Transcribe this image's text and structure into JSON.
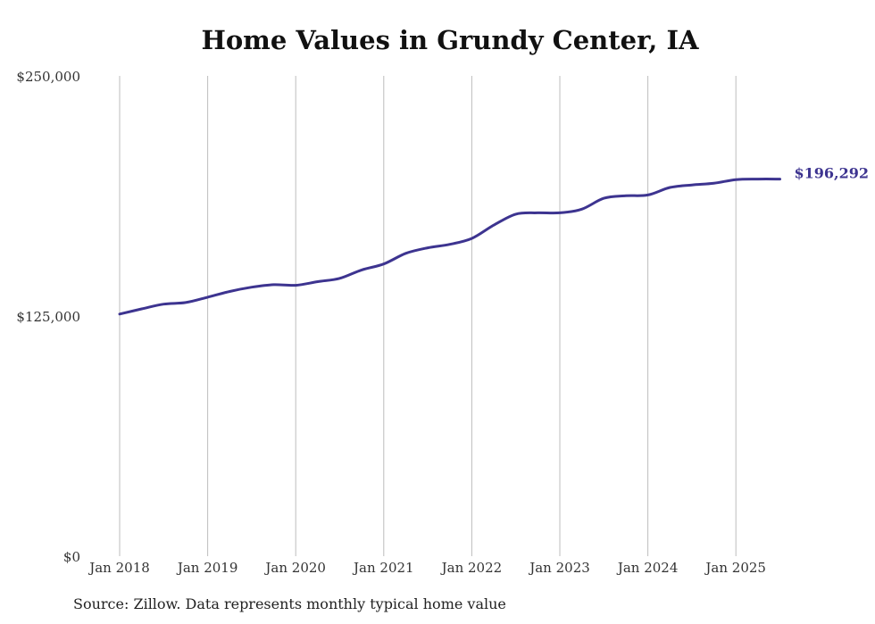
{
  "chart_data": {
    "type": "line",
    "title": "Home Values in Grundy Center, IA",
    "xlabel": "",
    "ylabel": "",
    "ylim": [
      0,
      250000
    ],
    "y_ticks": [
      {
        "value": 0,
        "label": "$0"
      },
      {
        "value": 125000,
        "label": "$125,000"
      },
      {
        "value": 250000,
        "label": "$250,000"
      }
    ],
    "x_ticks": [
      {
        "value": 2018,
        "label": "Jan 2018"
      },
      {
        "value": 2019,
        "label": "Jan 2019"
      },
      {
        "value": 2020,
        "label": "Jan 2020"
      },
      {
        "value": 2021,
        "label": "Jan 2021"
      },
      {
        "value": 2022,
        "label": "Jan 2022"
      },
      {
        "value": 2023,
        "label": "Jan 2023"
      },
      {
        "value": 2024,
        "label": "Jan 2024"
      },
      {
        "value": 2025,
        "label": "Jan 2025"
      }
    ],
    "grid": "vertical",
    "color": "#3d3490",
    "series": [
      {
        "points": [
          {
            "date": "2018-01",
            "value": 126000
          },
          {
            "date": "2018-04",
            "value": 128700
          },
          {
            "date": "2018-07",
            "value": 131200
          },
          {
            "date": "2018-10",
            "value": 132000
          },
          {
            "date": "2019-01",
            "value": 134800
          },
          {
            "date": "2019-04",
            "value": 137800
          },
          {
            "date": "2019-07",
            "value": 140000
          },
          {
            "date": "2019-10",
            "value": 141300
          },
          {
            "date": "2020-01",
            "value": 141000
          },
          {
            "date": "2020-04",
            "value": 142900
          },
          {
            "date": "2020-07",
            "value": 144600
          },
          {
            "date": "2020-10",
            "value": 149000
          },
          {
            "date": "2021-01",
            "value": 152100
          },
          {
            "date": "2021-04",
            "value": 157600
          },
          {
            "date": "2021-07",
            "value": 160500
          },
          {
            "date": "2021-10",
            "value": 162300
          },
          {
            "date": "2022-01",
            "value": 165400
          },
          {
            "date": "2022-04",
            "value": 172300
          },
          {
            "date": "2022-07",
            "value": 178000
          },
          {
            "date": "2022-10",
            "value": 178700
          },
          {
            "date": "2023-01",
            "value": 178700
          },
          {
            "date": "2023-04",
            "value": 180600
          },
          {
            "date": "2023-07",
            "value": 186300
          },
          {
            "date": "2023-10",
            "value": 187600
          },
          {
            "date": "2024-01",
            "value": 188000
          },
          {
            "date": "2024-04",
            "value": 191900
          },
          {
            "date": "2024-07",
            "value": 193200
          },
          {
            "date": "2024-10",
            "value": 194100
          },
          {
            "date": "2025-01",
            "value": 196000
          },
          {
            "date": "2025-04",
            "value": 196300
          },
          {
            "date": "2025-07",
            "value": 196292
          }
        ]
      }
    ],
    "end_label": "$196,292"
  },
  "source_note": "Source: Zillow. Data represents monthly typical home value"
}
